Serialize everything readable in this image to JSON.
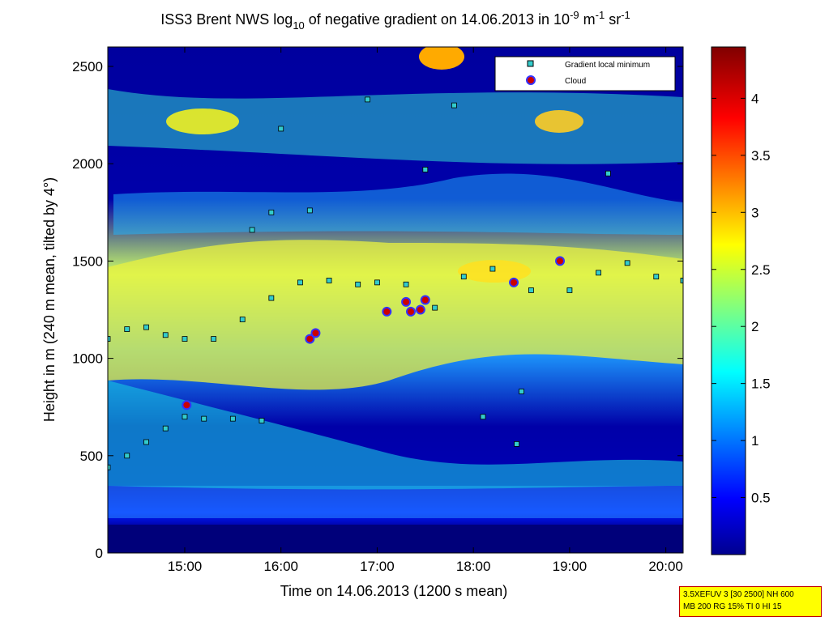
{
  "chart_data": {
    "type": "heatmap",
    "title": {
      "main": "ISS3 Brent NWS log",
      "sub1": "10",
      "mid": " of negative gradient on 14.06.2013 in 10",
      "sup1": "-9",
      "mid2": " m",
      "sup2": "-1",
      "mid3": " sr",
      "sup3": "-1"
    },
    "xlabel": "Time on 14.06.2013 (1200 s mean)",
    "ylabel": "Height in m (240 m mean, tilted by 4°)",
    "x_ticks": [
      "15:00",
      "16:00",
      "17:00",
      "18:00",
      "19:00",
      "20:00"
    ],
    "x_tick_hours": [
      15,
      16,
      17,
      18,
      19,
      20
    ],
    "xlim_hours": [
      14.2,
      20.18
    ],
    "y_ticks": [
      0,
      500,
      1000,
      1500,
      2000,
      2500
    ],
    "ylim": [
      0,
      2600
    ],
    "colorbar": {
      "ticks": [
        "0.5",
        "1",
        "1.5",
        "2",
        "2.5",
        "3",
        "3.5",
        "4"
      ],
      "tick_values": [
        0.5,
        1,
        1.5,
        2,
        2.5,
        3,
        3.5,
        4
      ],
      "range": [
        0,
        4.45
      ],
      "colormap": "jet"
    },
    "legend": {
      "placement": "top-right",
      "entries": [
        {
          "label": "Gradient local minimum",
          "marker": "square",
          "color": "#33cccc"
        },
        {
          "label": "Cloud",
          "marker": "circle",
          "color": "#cc0000",
          "edge": "#3333ff"
        }
      ]
    },
    "series": [
      {
        "name": "Gradient local minimum",
        "points": [
          [
            14.2,
            440
          ],
          [
            14.4,
            500
          ],
          [
            14.6,
            570
          ],
          [
            14.8,
            640
          ],
          [
            15.0,
            700
          ],
          [
            15.2,
            690
          ],
          [
            15.5,
            690
          ],
          [
            15.8,
            680
          ],
          [
            14.2,
            1100
          ],
          [
            14.4,
            1150
          ],
          [
            14.6,
            1160
          ],
          [
            14.8,
            1120
          ],
          [
            15.0,
            1100
          ],
          [
            15.3,
            1100
          ],
          [
            15.6,
            1200
          ],
          [
            15.9,
            1310
          ],
          [
            16.2,
            1390
          ],
          [
            16.5,
            1400
          ],
          [
            16.8,
            1380
          ],
          [
            17.0,
            1390
          ],
          [
            17.3,
            1380
          ],
          [
            17.6,
            1260
          ],
          [
            17.9,
            1420
          ],
          [
            18.2,
            1460
          ],
          [
            18.6,
            1350
          ],
          [
            19.0,
            1350
          ],
          [
            19.3,
            1440
          ],
          [
            19.6,
            1490
          ],
          [
            19.9,
            1420
          ],
          [
            20.18,
            1400
          ],
          [
            15.7,
            1660
          ],
          [
            15.9,
            1750
          ],
          [
            16.0,
            2180
          ],
          [
            16.3,
            1760
          ],
          [
            16.9,
            2330
          ],
          [
            17.5,
            1970
          ],
          [
            17.8,
            2300
          ],
          [
            18.1,
            700
          ],
          [
            18.45,
            560
          ],
          [
            18.5,
            830
          ],
          [
            19.4,
            1950
          ]
        ]
      },
      {
        "name": "Cloud",
        "points": [
          [
            15.02,
            760
          ],
          [
            16.3,
            1100
          ],
          [
            16.36,
            1130
          ],
          [
            17.1,
            1240
          ],
          [
            17.3,
            1290
          ],
          [
            17.35,
            1240
          ],
          [
            17.45,
            1250
          ],
          [
            17.5,
            1300
          ],
          [
            18.42,
            1390
          ],
          [
            18.9,
            1500
          ]
        ]
      }
    ]
  },
  "info_box": {
    "line1": "3.5XEFUV 3 [30 2500] NH 600",
    "line2": "MB 200 RG 15% TI 0 HI 15"
  }
}
